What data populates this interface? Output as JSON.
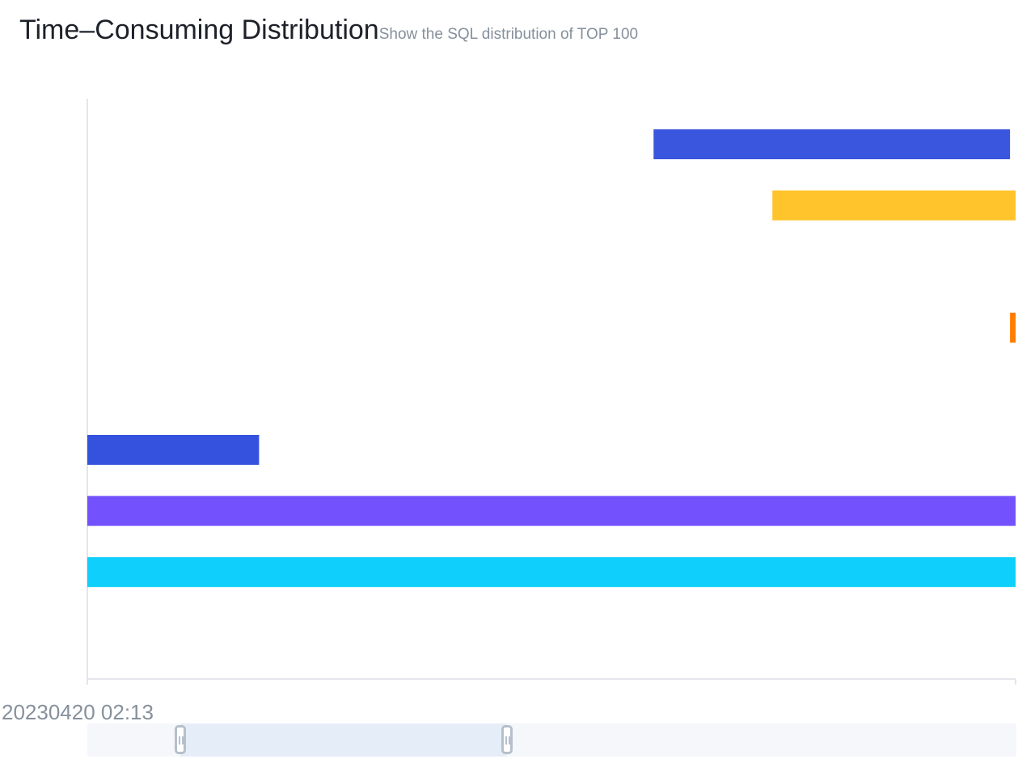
{
  "header": {
    "title": "Time–Consuming Distribution",
    "subtitle": "Show the SQL distribution of TOP 100"
  },
  "chart_data": {
    "type": "bar",
    "orientation": "horizontal",
    "title": "Time–Consuming Distribution",
    "subtitle": "Show the SQL distribution of TOP 100",
    "xlabel": "",
    "ylabel": "",
    "x_tick_labels": [
      "20230420 02:13"
    ],
    "x_range": [
      0,
      100
    ],
    "row_count": 9,
    "bars": [
      {
        "row": 0,
        "start": 61.0,
        "end": 99.4,
        "color": "#3a56de"
      },
      {
        "row": 1,
        "start": 73.8,
        "end": 100,
        "color": "#ffc42c"
      },
      {
        "row": 3,
        "start": 99.4,
        "end": 100,
        "color": "#ff7d00"
      },
      {
        "row": 5,
        "start": 0,
        "end": 18.5,
        "color": "#3452de"
      },
      {
        "row": 6,
        "start": 0,
        "end": 100,
        "color": "#7352fe"
      },
      {
        "row": 7,
        "start": 0,
        "end": 100,
        "color": "#0fcffc"
      }
    ],
    "grid": false,
    "legend": "none"
  },
  "zoom": {
    "start_pct": 10.0,
    "end_pct": 45.2,
    "track_color": "#f5f7fa",
    "window_color": "#e5eef8",
    "handle_color": "#b6bfcb"
  },
  "colors": {
    "axis": "#e5e6eb",
    "title": "#1d2129",
    "muted": "#86909c"
  }
}
